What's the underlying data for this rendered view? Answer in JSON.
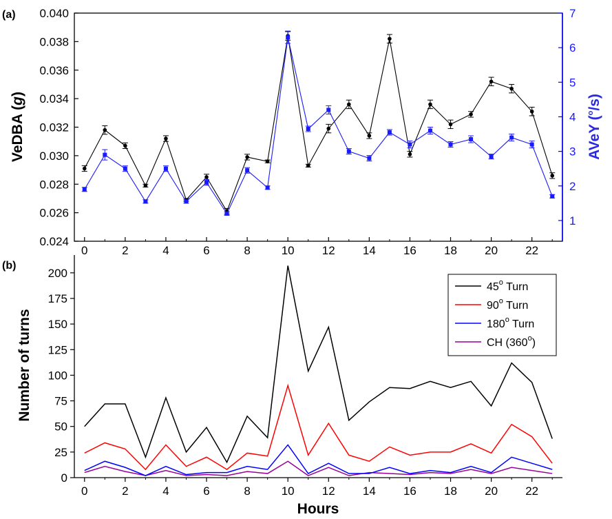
{
  "chart_data": [
    {
      "panel_label": "(a)",
      "type": "line",
      "x": [
        0,
        1,
        2,
        3,
        4,
        5,
        6,
        7,
        8,
        9,
        10,
        11,
        12,
        13,
        14,
        15,
        16,
        17,
        18,
        19,
        20,
        21,
        22,
        23
      ],
      "xlabel": "",
      "x_ticks": [
        0,
        2,
        4,
        6,
        8,
        10,
        12,
        14,
        16,
        18,
        20,
        22
      ],
      "xlim": [
        -0.5,
        23.5
      ],
      "ylabel_main": "VeDBA (",
      "ylabel_italic": "g",
      "ylabel_end": ")",
      "ylim": [
        0.024,
        0.04
      ],
      "y_ticks": [
        "0.024",
        "0.026",
        "0.028",
        "0.030",
        "0.032",
        "0.034",
        "0.036",
        "0.038",
        "0.040"
      ],
      "y2label_main": "AVeY (",
      "y2label_sup": "o",
      "y2label_end": "/s)",
      "y2lim": [
        0.4,
        7
      ],
      "y2_ticks": [
        "1",
        "2",
        "3",
        "4",
        "5",
        "6",
        "7"
      ],
      "series": [
        {
          "axis": "left",
          "color": "#000000",
          "marker": "circle",
          "values": [
            0.0291,
            0.0318,
            0.0307,
            0.0279,
            0.0312,
            0.0269,
            0.0285,
            0.0261,
            0.0299,
            0.0296,
            0.0384,
            0.0293,
            0.0319,
            0.0336,
            0.0314,
            0.0382,
            0.0301,
            0.0336,
            0.0322,
            0.0329,
            0.0352,
            0.0347,
            0.0331,
            0.0286
          ],
          "errors": [
            0.0002,
            0.0003,
            0.0002,
            0.0001,
            0.0002,
            0.0001,
            0.0002,
            0.0002,
            0.0002,
            0.0001,
            0.0003,
            0.0001,
            0.0003,
            0.0003,
            0.0002,
            0.0003,
            0.0002,
            0.0003,
            0.0003,
            0.0002,
            0.0003,
            0.0003,
            0.0003,
            0.0002
          ]
        },
        {
          "axis": "right",
          "color": "#1a1aff",
          "marker": "square",
          "values": [
            1.9,
            2.9,
            2.5,
            1.55,
            2.5,
            1.55,
            2.1,
            1.2,
            2.45,
            1.95,
            6.3,
            3.65,
            4.2,
            3.0,
            2.8,
            3.55,
            3.2,
            3.6,
            3.2,
            3.35,
            2.85,
            3.4,
            3.2,
            1.7
          ],
          "errors": [
            0.06,
            0.15,
            0.08,
            0.05,
            0.08,
            0.05,
            0.08,
            0.05,
            0.08,
            0.05,
            0.18,
            0.08,
            0.12,
            0.08,
            0.08,
            0.08,
            0.1,
            0.1,
            0.08,
            0.1,
            0.07,
            0.1,
            0.1,
            0.05
          ]
        }
      ]
    },
    {
      "panel_label": "(b)",
      "type": "line",
      "x": [
        0,
        1,
        2,
        3,
        4,
        5,
        6,
        7,
        8,
        9,
        10,
        11,
        12,
        13,
        14,
        15,
        16,
        17,
        18,
        19,
        20,
        21,
        22,
        23
      ],
      "xlabel": "Hours",
      "x_ticks": [
        0,
        2,
        4,
        6,
        8,
        10,
        12,
        14,
        16,
        18,
        20,
        22
      ],
      "xlim": [
        -0.5,
        23.5
      ],
      "ylabel": "Number of turns",
      "ylim": [
        0,
        212
      ],
      "y_ticks": [
        0,
        25,
        50,
        75,
        100,
        125,
        150,
        175,
        200
      ],
      "legend_position": "top-right",
      "series": [
        {
          "name_pre": "45",
          "name_sup": "o",
          "name_post": " Turn",
          "color": "#000000",
          "values": [
            50,
            72,
            72,
            20,
            78,
            25,
            49,
            15,
            60,
            39,
            207,
            104,
            147,
            56,
            74,
            88,
            87,
            94,
            88,
            94,
            70,
            112,
            93,
            38
          ]
        },
        {
          "name_pre": "90",
          "name_sup": "o",
          "name_post": " Turn",
          "color": "#ff0000",
          "values": [
            24,
            34,
            28,
            8,
            32,
            11,
            20,
            8,
            24,
            21,
            90,
            22,
            53,
            22,
            16,
            30,
            22,
            25,
            25,
            33,
            24,
            52,
            40,
            14
          ]
        },
        {
          "name_pre": "180",
          "name_sup": "o",
          "name_post": " Turn",
          "color": "#0000ff",
          "values": [
            7,
            16,
            10,
            2,
            11,
            3,
            5,
            5,
            11,
            8,
            32,
            4,
            14,
            4,
            4,
            10,
            4,
            7,
            5,
            11,
            5,
            20,
            14,
            8
          ]
        },
        {
          "name_pre": "CH (360",
          "name_sup": "o",
          "name_post": ")",
          "color": "#990099",
          "values": [
            5,
            11,
            6,
            2,
            7,
            2,
            3,
            2,
            6,
            4,
            16,
            2,
            10,
            2,
            5,
            4,
            3,
            5,
            4,
            8,
            4,
            10,
            7,
            4
          ]
        }
      ]
    }
  ]
}
